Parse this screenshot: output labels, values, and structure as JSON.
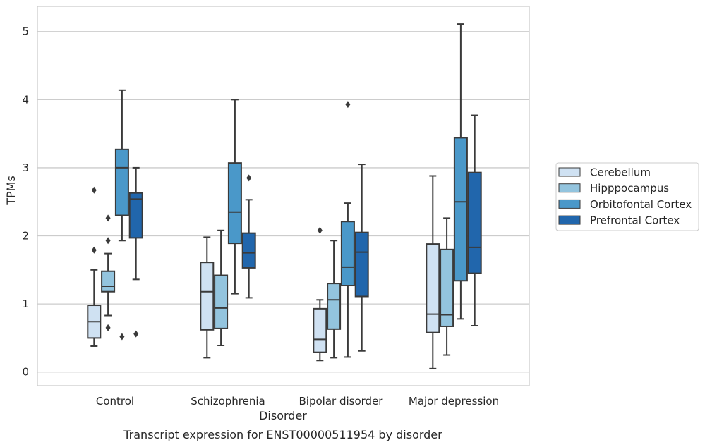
{
  "chart_data": {
    "type": "box",
    "caption": "Transcript expression for ENST00000511954 by disorder",
    "xlabel": "Disorder",
    "ylabel": "TPMs",
    "ylim": [
      -0.2,
      5.37
    ],
    "yticks": [
      0,
      1,
      2,
      3,
      4,
      5
    ],
    "grid": true,
    "legend_position": "right",
    "categories": [
      "Control",
      "Schizophrenia",
      "Bipolar disorder",
      "Major depression"
    ],
    "series": [
      {
        "name": "Cerebellum",
        "color": "#cfe1f2",
        "boxes": [
          {
            "whisker_low": 0.38,
            "q1": 0.5,
            "median": 0.74,
            "q3": 0.98,
            "whisker_high": 1.5,
            "outliers": [
              2.67,
              1.79
            ]
          },
          {
            "whisker_low": 0.21,
            "q1": 0.62,
            "median": 1.18,
            "q3": 1.61,
            "whisker_high": 1.98,
            "outliers": []
          },
          {
            "whisker_low": 0.17,
            "q1": 0.29,
            "median": 0.48,
            "q3": 0.93,
            "whisker_high": 1.06,
            "outliers": [
              2.08
            ]
          },
          {
            "whisker_low": 0.05,
            "q1": 0.58,
            "median": 0.85,
            "q3": 1.88,
            "whisker_high": 2.88,
            "outliers": []
          }
        ]
      },
      {
        "name": "Hipppocampus",
        "color": "#93c4de",
        "boxes": [
          {
            "whisker_low": 0.83,
            "q1": 1.18,
            "median": 1.26,
            "q3": 1.48,
            "whisker_high": 1.74,
            "outliers": [
              2.26,
              1.93,
              0.65
            ]
          },
          {
            "whisker_low": 0.39,
            "q1": 0.64,
            "median": 0.94,
            "q3": 1.42,
            "whisker_high": 2.08,
            "outliers": []
          },
          {
            "whisker_low": 0.21,
            "q1": 0.63,
            "median": 1.06,
            "q3": 1.3,
            "whisker_high": 1.93,
            "outliers": []
          },
          {
            "whisker_low": 0.25,
            "q1": 0.67,
            "median": 0.84,
            "q3": 1.8,
            "whisker_high": 2.26,
            "outliers": []
          }
        ]
      },
      {
        "name": "Orbitofontal Cortex",
        "color": "#4a98c9",
        "boxes": [
          {
            "whisker_low": 1.93,
            "q1": 2.3,
            "median": 3.0,
            "q3": 3.27,
            "whisker_high": 4.14,
            "outliers": [
              0.52
            ]
          },
          {
            "whisker_low": 1.15,
            "q1": 1.89,
            "median": 2.35,
            "q3": 3.07,
            "whisker_high": 4.0,
            "outliers": []
          },
          {
            "whisker_low": 0.22,
            "q1": 1.27,
            "median": 1.54,
            "q3": 2.21,
            "whisker_high": 2.48,
            "outliers": [
              3.93
            ]
          },
          {
            "whisker_low": 0.78,
            "q1": 1.34,
            "median": 2.5,
            "q3": 3.44,
            "whisker_high": 5.11,
            "outliers": []
          }
        ]
      },
      {
        "name": "Prefrontal Cortex",
        "color": "#2166ac",
        "boxes": [
          {
            "whisker_low": 1.36,
            "q1": 1.97,
            "median": 2.54,
            "q3": 2.63,
            "whisker_high": 3.0,
            "outliers": [
              0.56
            ]
          },
          {
            "whisker_low": 1.09,
            "q1": 1.53,
            "median": 1.75,
            "q3": 2.04,
            "whisker_high": 2.53,
            "outliers": [
              2.85
            ]
          },
          {
            "whisker_low": 0.31,
            "q1": 1.11,
            "median": 1.76,
            "q3": 2.05,
            "whisker_high": 3.05,
            "outliers": []
          },
          {
            "whisker_low": 0.68,
            "q1": 1.45,
            "median": 1.83,
            "q3": 2.93,
            "whisker_high": 3.77,
            "outliers": []
          }
        ]
      }
    ]
  }
}
